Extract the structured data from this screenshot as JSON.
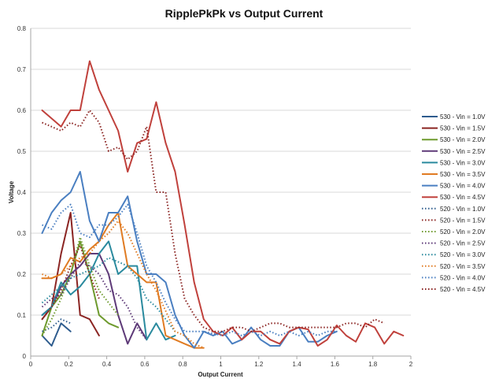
{
  "chart_data": {
    "type": "line",
    "title": "RipplePkPk vs Output Current",
    "xlabel": "Output Current",
    "ylabel": "Voltage",
    "xlim": [
      0,
      2
    ],
    "ylim": [
      0,
      0.8
    ],
    "x_ticks": [
      "0",
      "0.2",
      "0.4",
      "0.6",
      "0.8",
      "1",
      "1.2",
      "1.4",
      "1.6",
      "1.8",
      "2"
    ],
    "y_ticks": [
      "0",
      "0.1",
      "0.2",
      "0.3",
      "0.4",
      "0.5",
      "0.6",
      "0.7",
      "0.8"
    ],
    "grid": "horizontal",
    "legend_position": "right",
    "series": [
      {
        "name": "530 - Vin = 1.0V",
        "color": "#2E5C8E",
        "style": "solid",
        "points": [
          [
            0.06,
            0.05
          ],
          [
            0.11,
            0.025
          ],
          [
            0.16,
            0.08
          ],
          [
            0.21,
            0.06
          ]
        ]
      },
      {
        "name": "530 - Vin = 1.5V",
        "color": "#8B2523",
        "style": "solid",
        "points": [
          [
            0.06,
            0.09
          ],
          [
            0.11,
            0.12
          ],
          [
            0.16,
            0.25
          ],
          [
            0.21,
            0.35
          ],
          [
            0.26,
            0.1
          ],
          [
            0.31,
            0.09
          ],
          [
            0.36,
            0.05
          ]
        ]
      },
      {
        "name": "530 - Vin = 2.0V",
        "color": "#6E9A2E",
        "style": "solid",
        "points": [
          [
            0.06,
            0.05
          ],
          [
            0.11,
            0.12
          ],
          [
            0.16,
            0.15
          ],
          [
            0.21,
            0.2
          ],
          [
            0.26,
            0.28
          ],
          [
            0.31,
            0.2
          ],
          [
            0.36,
            0.1
          ],
          [
            0.41,
            0.08
          ],
          [
            0.46,
            0.07
          ]
        ]
      },
      {
        "name": "530 - Vin = 2.5V",
        "color": "#5E3A78",
        "style": "solid",
        "points": [
          [
            0.06,
            0.1
          ],
          [
            0.11,
            0.12
          ],
          [
            0.16,
            0.17
          ],
          [
            0.21,
            0.2
          ],
          [
            0.26,
            0.22
          ],
          [
            0.31,
            0.25
          ],
          [
            0.36,
            0.25
          ],
          [
            0.41,
            0.2
          ],
          [
            0.46,
            0.1
          ],
          [
            0.51,
            0.03
          ],
          [
            0.56,
            0.08
          ],
          [
            0.61,
            0.04
          ]
        ]
      },
      {
        "name": "530 - Vin = 3.0V",
        "color": "#2A8A9E",
        "style": "solid",
        "points": [
          [
            0.06,
            0.1
          ],
          [
            0.11,
            0.12
          ],
          [
            0.16,
            0.18
          ],
          [
            0.21,
            0.15
          ],
          [
            0.26,
            0.17
          ],
          [
            0.31,
            0.2
          ],
          [
            0.36,
            0.25
          ],
          [
            0.41,
            0.28
          ],
          [
            0.46,
            0.2
          ],
          [
            0.51,
            0.22
          ],
          [
            0.56,
            0.22
          ],
          [
            0.61,
            0.04
          ],
          [
            0.66,
            0.08
          ],
          [
            0.71,
            0.04
          ],
          [
            0.76,
            0.05
          ]
        ]
      },
      {
        "name": "530 - Vin = 3.5V",
        "color": "#E07B22",
        "style": "solid",
        "points": [
          [
            0.06,
            0.19
          ],
          [
            0.11,
            0.19
          ],
          [
            0.16,
            0.2
          ],
          [
            0.21,
            0.24
          ],
          [
            0.26,
            0.23
          ],
          [
            0.31,
            0.26
          ],
          [
            0.36,
            0.28
          ],
          [
            0.41,
            0.32
          ],
          [
            0.46,
            0.35
          ],
          [
            0.51,
            0.22
          ],
          [
            0.56,
            0.2
          ],
          [
            0.61,
            0.18
          ],
          [
            0.66,
            0.18
          ],
          [
            0.71,
            0.05
          ],
          [
            0.76,
            0.04
          ],
          [
            0.81,
            0.03
          ],
          [
            0.86,
            0.02
          ],
          [
            0.91,
            0.02
          ]
        ]
      },
      {
        "name": "530 - Vin = 4.0V",
        "color": "#4A7FC1",
        "style": "solid",
        "points": [
          [
            0.06,
            0.3
          ],
          [
            0.11,
            0.35
          ],
          [
            0.16,
            0.38
          ],
          [
            0.21,
            0.4
          ],
          [
            0.26,
            0.45
          ],
          [
            0.31,
            0.33
          ],
          [
            0.36,
            0.28
          ],
          [
            0.41,
            0.35
          ],
          [
            0.46,
            0.35
          ],
          [
            0.51,
            0.39
          ],
          [
            0.56,
            0.28
          ],
          [
            0.61,
            0.2
          ],
          [
            0.66,
            0.2
          ],
          [
            0.71,
            0.18
          ],
          [
            0.76,
            0.1
          ],
          [
            0.81,
            0.05
          ],
          [
            0.86,
            0.02
          ],
          [
            0.91,
            0.06
          ],
          [
            0.96,
            0.05
          ],
          [
            1.01,
            0.06
          ],
          [
            1.06,
            0.03
          ],
          [
            1.11,
            0.04
          ],
          [
            1.16,
            0.07
          ],
          [
            1.21,
            0.04
          ],
          [
            1.26,
            0.025
          ],
          [
            1.31,
            0.025
          ],
          [
            1.36,
            0.06
          ],
          [
            1.41,
            0.07
          ],
          [
            1.46,
            0.035
          ],
          [
            1.51,
            0.035
          ],
          [
            1.56,
            0.05
          ],
          [
            1.61,
            0.06
          ]
        ]
      },
      {
        "name": "530 - Vin = 4.5V",
        "color": "#C0413C",
        "style": "solid",
        "points": [
          [
            0.06,
            0.6
          ],
          [
            0.11,
            0.58
          ],
          [
            0.16,
            0.56
          ],
          [
            0.21,
            0.6
          ],
          [
            0.26,
            0.6
          ],
          [
            0.31,
            0.72
          ],
          [
            0.36,
            0.65
          ],
          [
            0.41,
            0.6
          ],
          [
            0.46,
            0.55
          ],
          [
            0.51,
            0.45
          ],
          [
            0.56,
            0.52
          ],
          [
            0.61,
            0.53
          ],
          [
            0.66,
            0.62
          ],
          [
            0.71,
            0.52
          ],
          [
            0.76,
            0.45
          ],
          [
            0.81,
            0.32
          ],
          [
            0.86,
            0.18
          ],
          [
            0.91,
            0.09
          ],
          [
            0.96,
            0.06
          ],
          [
            1.01,
            0.05
          ],
          [
            1.06,
            0.07
          ],
          [
            1.11,
            0.04
          ],
          [
            1.16,
            0.06
          ],
          [
            1.21,
            0.06
          ],
          [
            1.26,
            0.04
          ],
          [
            1.31,
            0.03
          ],
          [
            1.36,
            0.06
          ],
          [
            1.41,
            0.07
          ],
          [
            1.46,
            0.065
          ],
          [
            1.51,
            0.025
          ],
          [
            1.56,
            0.04
          ],
          [
            1.61,
            0.075
          ],
          [
            1.66,
            0.05
          ],
          [
            1.71,
            0.035
          ],
          [
            1.76,
            0.08
          ],
          [
            1.81,
            0.07
          ],
          [
            1.86,
            0.03
          ],
          [
            1.91,
            0.06
          ],
          [
            1.96,
            0.05
          ]
        ]
      },
      {
        "name": "520 - Vin = 1.0V",
        "color": "#2E5C8E",
        "style": "dotted",
        "points": [
          [
            0.06,
            0.06
          ],
          [
            0.11,
            0.07
          ],
          [
            0.16,
            0.09
          ],
          [
            0.21,
            0.08
          ]
        ]
      },
      {
        "name": "520 - Vin = 1.5V",
        "color": "#8B2523",
        "style": "dotted",
        "points": [
          [
            0.06,
            0.09
          ],
          [
            0.11,
            0.12
          ],
          [
            0.16,
            0.16
          ],
          [
            0.21,
            0.22
          ],
          [
            0.26,
            0.27
          ],
          [
            0.31,
            0.2
          ],
          [
            0.36,
            0.14
          ]
        ]
      },
      {
        "name": "520 - Vin = 2.0V",
        "color": "#6E9A2E",
        "style": "dotted",
        "points": [
          [
            0.06,
            0.05
          ],
          [
            0.11,
            0.09
          ],
          [
            0.16,
            0.14
          ],
          [
            0.21,
            0.2
          ],
          [
            0.26,
            0.29
          ],
          [
            0.31,
            0.22
          ],
          [
            0.36,
            0.16
          ],
          [
            0.41,
            0.13
          ],
          [
            0.46,
            0.1
          ]
        ]
      },
      {
        "name": "520 - Vin = 2.5V",
        "color": "#5E3A78",
        "style": "dotted",
        "points": [
          [
            0.06,
            0.12
          ],
          [
            0.11,
            0.14
          ],
          [
            0.16,
            0.15
          ],
          [
            0.21,
            0.19
          ],
          [
            0.26,
            0.23
          ],
          [
            0.31,
            0.22
          ],
          [
            0.36,
            0.2
          ],
          [
            0.41,
            0.16
          ],
          [
            0.46,
            0.15
          ],
          [
            0.51,
            0.12
          ],
          [
            0.56,
            0.07
          ],
          [
            0.61,
            0.04
          ]
        ]
      },
      {
        "name": "520 - Vin = 3.0V",
        "color": "#2A8A9E",
        "style": "dotted",
        "points": [
          [
            0.06,
            0.13
          ],
          [
            0.11,
            0.15
          ],
          [
            0.16,
            0.17
          ],
          [
            0.21,
            0.19
          ],
          [
            0.26,
            0.2
          ],
          [
            0.31,
            0.21
          ],
          [
            0.36,
            0.22
          ],
          [
            0.41,
            0.24
          ],
          [
            0.46,
            0.23
          ],
          [
            0.51,
            0.22
          ],
          [
            0.56,
            0.19
          ],
          [
            0.61,
            0.14
          ],
          [
            0.66,
            0.12
          ],
          [
            0.71,
            0.09
          ],
          [
            0.76,
            0.06
          ]
        ]
      },
      {
        "name": "520 - Vin = 3.5V",
        "color": "#E07B22",
        "style": "dotted",
        "points": [
          [
            0.06,
            0.2
          ],
          [
            0.11,
            0.19
          ],
          [
            0.16,
            0.2
          ],
          [
            0.21,
            0.22
          ],
          [
            0.26,
            0.24
          ],
          [
            0.31,
            0.25
          ],
          [
            0.36,
            0.28
          ],
          [
            0.41,
            0.3
          ],
          [
            0.46,
            0.33
          ],
          [
            0.51,
            0.3
          ],
          [
            0.56,
            0.25
          ],
          [
            0.61,
            0.2
          ],
          [
            0.66,
            0.16
          ],
          [
            0.71,
            0.11
          ],
          [
            0.76,
            0.06
          ],
          [
            0.81,
            0.05
          ],
          [
            0.86,
            0.03
          ],
          [
            0.91,
            0.02
          ]
        ]
      },
      {
        "name": "520 - Vin = 4.0V",
        "color": "#4A7FC1",
        "style": "dotted",
        "points": [
          [
            0.06,
            0.32
          ],
          [
            0.11,
            0.31
          ],
          [
            0.16,
            0.35
          ],
          [
            0.21,
            0.37
          ],
          [
            0.26,
            0.3
          ],
          [
            0.31,
            0.29
          ],
          [
            0.36,
            0.32
          ],
          [
            0.41,
            0.32
          ],
          [
            0.46,
            0.34
          ],
          [
            0.51,
            0.37
          ],
          [
            0.56,
            0.3
          ],
          [
            0.61,
            0.22
          ],
          [
            0.66,
            0.18
          ],
          [
            0.71,
            0.13
          ],
          [
            0.76,
            0.09
          ],
          [
            0.81,
            0.06
          ],
          [
            0.86,
            0.06
          ],
          [
            0.91,
            0.06
          ],
          [
            0.96,
            0.055
          ],
          [
            1.01,
            0.05
          ],
          [
            1.06,
            0.06
          ],
          [
            1.11,
            0.05
          ],
          [
            1.16,
            0.06
          ],
          [
            1.21,
            0.05
          ],
          [
            1.26,
            0.06
          ],
          [
            1.31,
            0.05
          ],
          [
            1.36,
            0.06
          ],
          [
            1.41,
            0.05
          ],
          [
            1.46,
            0.06
          ],
          [
            1.51,
            0.05
          ],
          [
            1.56,
            0.06
          ],
          [
            1.61,
            0.06
          ]
        ]
      },
      {
        "name": "520 - Vin = 4.5V",
        "color": "#8B2523",
        "style": "dotted",
        "points": [
          [
            0.06,
            0.57
          ],
          [
            0.11,
            0.56
          ],
          [
            0.16,
            0.55
          ],
          [
            0.21,
            0.57
          ],
          [
            0.26,
            0.56
          ],
          [
            0.31,
            0.6
          ],
          [
            0.36,
            0.57
          ],
          [
            0.41,
            0.5
          ],
          [
            0.46,
            0.51
          ],
          [
            0.51,
            0.48
          ],
          [
            0.56,
            0.5
          ],
          [
            0.61,
            0.56
          ],
          [
            0.66,
            0.4
          ],
          [
            0.71,
            0.4
          ],
          [
            0.76,
            0.25
          ],
          [
            0.81,
            0.14
          ],
          [
            0.86,
            0.1
          ],
          [
            0.91,
            0.07
          ],
          [
            0.96,
            0.06
          ],
          [
            1.01,
            0.06
          ],
          [
            1.06,
            0.07
          ],
          [
            1.11,
            0.07
          ],
          [
            1.16,
            0.06
          ],
          [
            1.21,
            0.07
          ],
          [
            1.26,
            0.08
          ],
          [
            1.31,
            0.08
          ],
          [
            1.36,
            0.07
          ],
          [
            1.41,
            0.07
          ],
          [
            1.46,
            0.07
          ],
          [
            1.51,
            0.07
          ],
          [
            1.56,
            0.07
          ],
          [
            1.61,
            0.07
          ],
          [
            1.66,
            0.08
          ],
          [
            1.71,
            0.08
          ],
          [
            1.76,
            0.07
          ],
          [
            1.81,
            0.09
          ],
          [
            1.86,
            0.08
          ]
        ]
      }
    ]
  }
}
